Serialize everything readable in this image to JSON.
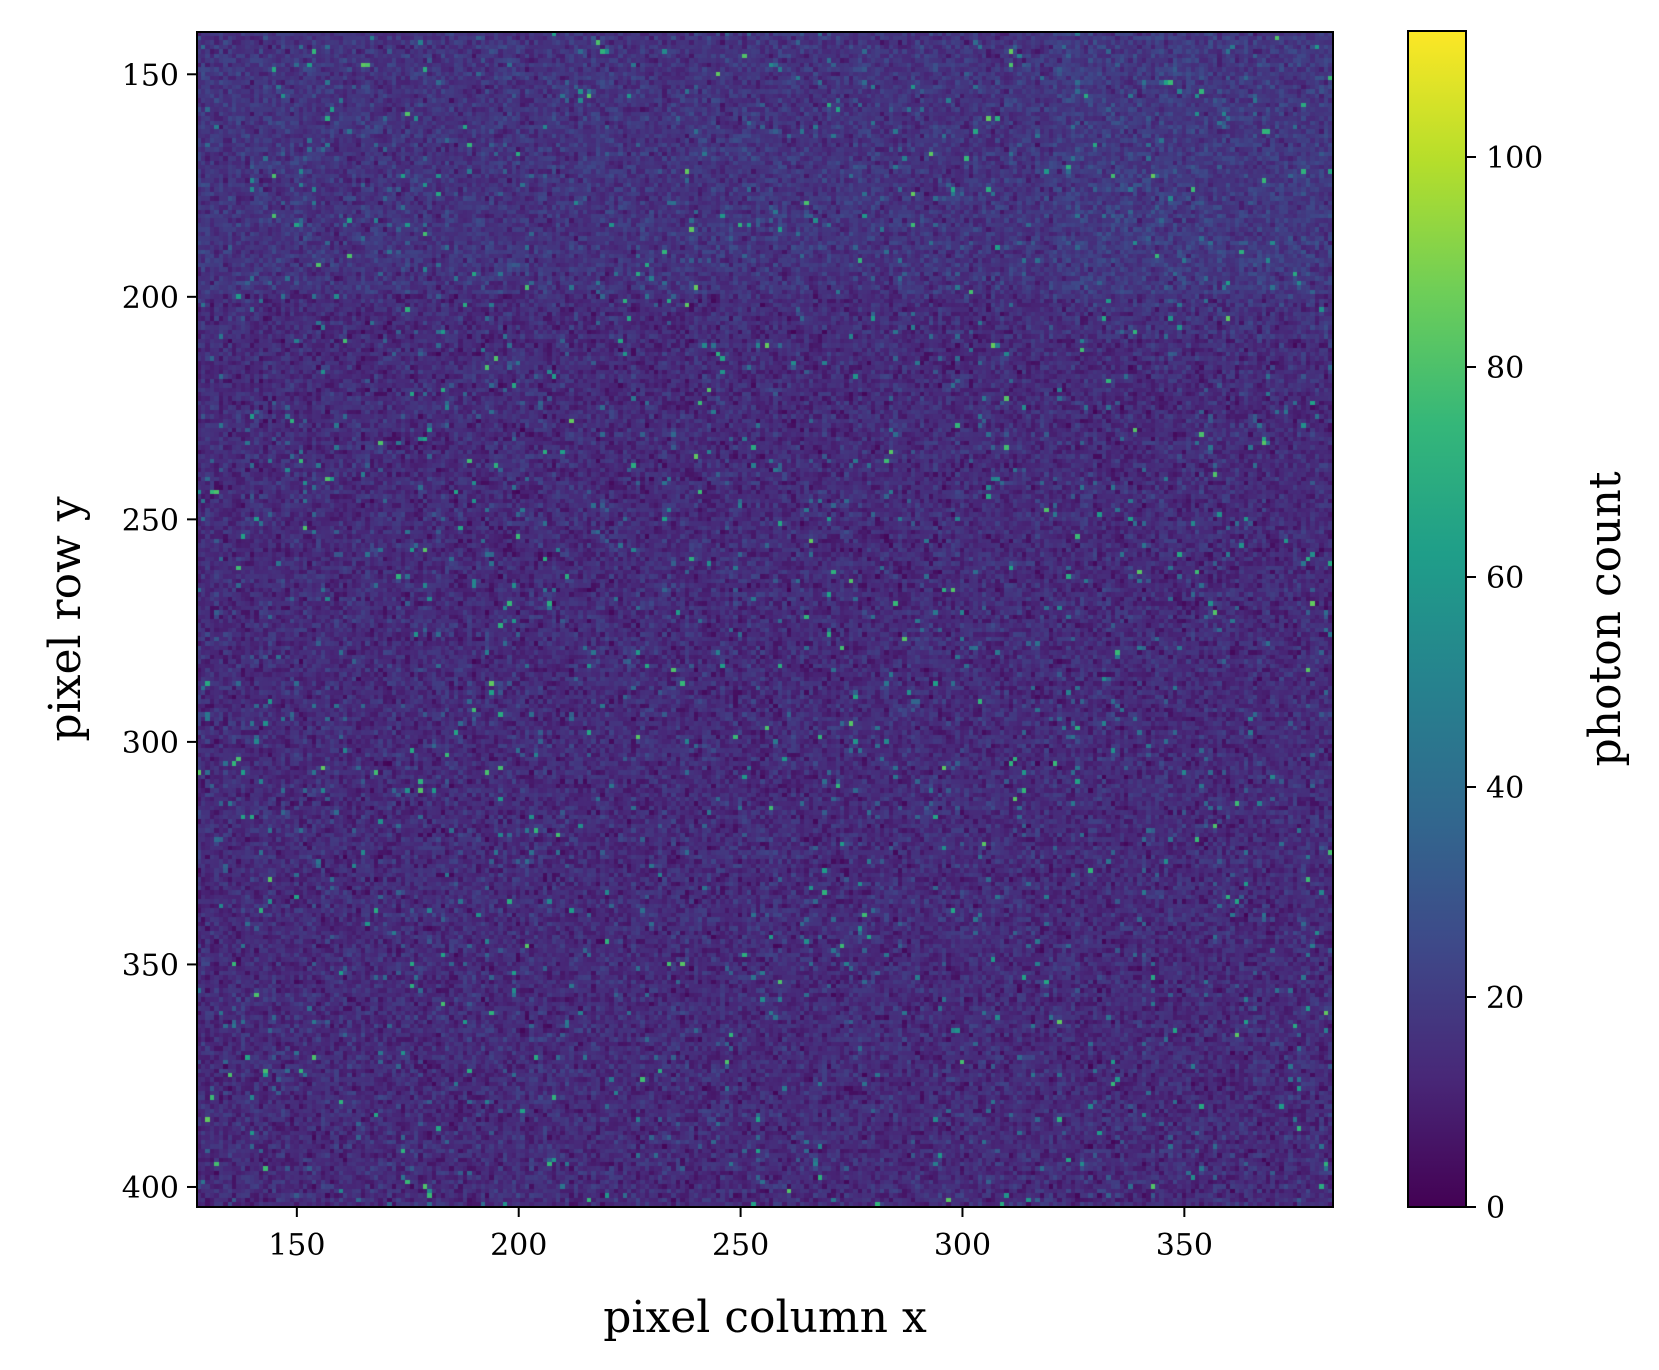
{
  "chart_data": {
    "type": "heatmap",
    "title": "",
    "xlabel": "pixel column x",
    "ylabel": "pixel row y",
    "xlim": [
      127.5,
      383.5
    ],
    "ylim": [
      404.5,
      140.5
    ],
    "y_inverted": true,
    "xticks": [
      150,
      200,
      250,
      300,
      350
    ],
    "yticks": [
      150,
      200,
      250,
      300,
      350,
      400
    ],
    "colormap": "viridis",
    "colorbar": {
      "label": "photon count",
      "range": [
        0,
        112
      ],
      "ticks": [
        0,
        20,
        40,
        60,
        80,
        100
      ]
    },
    "image": {
      "description_of_field": "noisy photon-count image; background mostly 8–25 counts, scattered bright pixels 40–80, top band (y<200) slightly brighter, upper-right region (x>320, y<210) slightly brighter",
      "background_mean": 14,
      "bright_pixel_max": 112
    }
  },
  "colors": {
    "viridis": [
      "#440154",
      "#482878",
      "#3e4989",
      "#31688e",
      "#26828e",
      "#1f9e89",
      "#35b779",
      "#6ece58",
      "#b5de2b",
      "#fde725"
    ]
  }
}
